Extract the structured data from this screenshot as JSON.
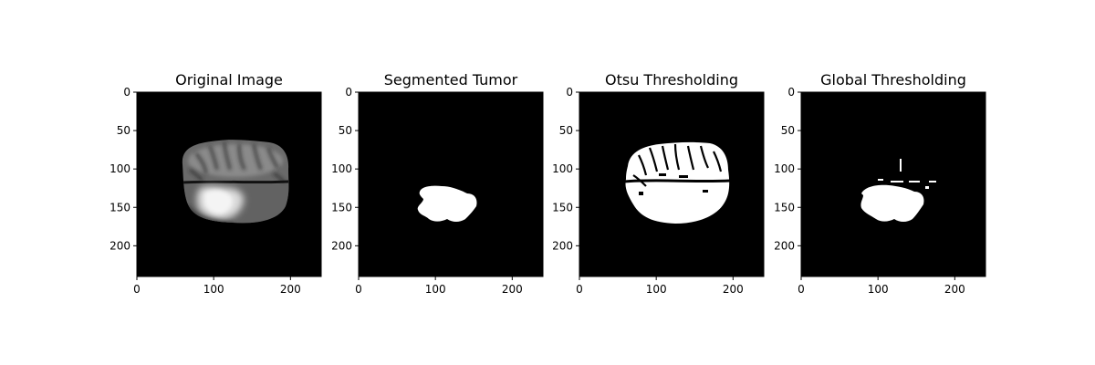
{
  "chart_data": [
    {
      "type": "image",
      "title": "Original Image",
      "xlim": [
        0,
        240
      ],
      "ylim": [
        240,
        0
      ],
      "xticks": [
        0,
        100,
        200
      ],
      "yticks": [
        0,
        50,
        100,
        150,
        200
      ],
      "colormap": "gray"
    },
    {
      "type": "image",
      "title": "Segmented Tumor",
      "xlim": [
        0,
        240
      ],
      "ylim": [
        240,
        0
      ],
      "xticks": [
        0,
        100,
        200
      ],
      "yticks": [
        0,
        50,
        100,
        150,
        200
      ],
      "colormap": "gray"
    },
    {
      "type": "image",
      "title": "Otsu Thresholding",
      "xlim": [
        0,
        240
      ],
      "ylim": [
        240,
        0
      ],
      "xticks": [
        0,
        100,
        200
      ],
      "yticks": [
        0,
        50,
        100,
        150,
        200
      ],
      "colormap": "gray"
    },
    {
      "type": "image",
      "title": "Global Thresholding",
      "xlim": [
        0,
        240
      ],
      "ylim": [
        240,
        0
      ],
      "xticks": [
        0,
        100,
        200
      ],
      "yticks": [
        0,
        50,
        100,
        150,
        200
      ],
      "colormap": "gray"
    }
  ]
}
